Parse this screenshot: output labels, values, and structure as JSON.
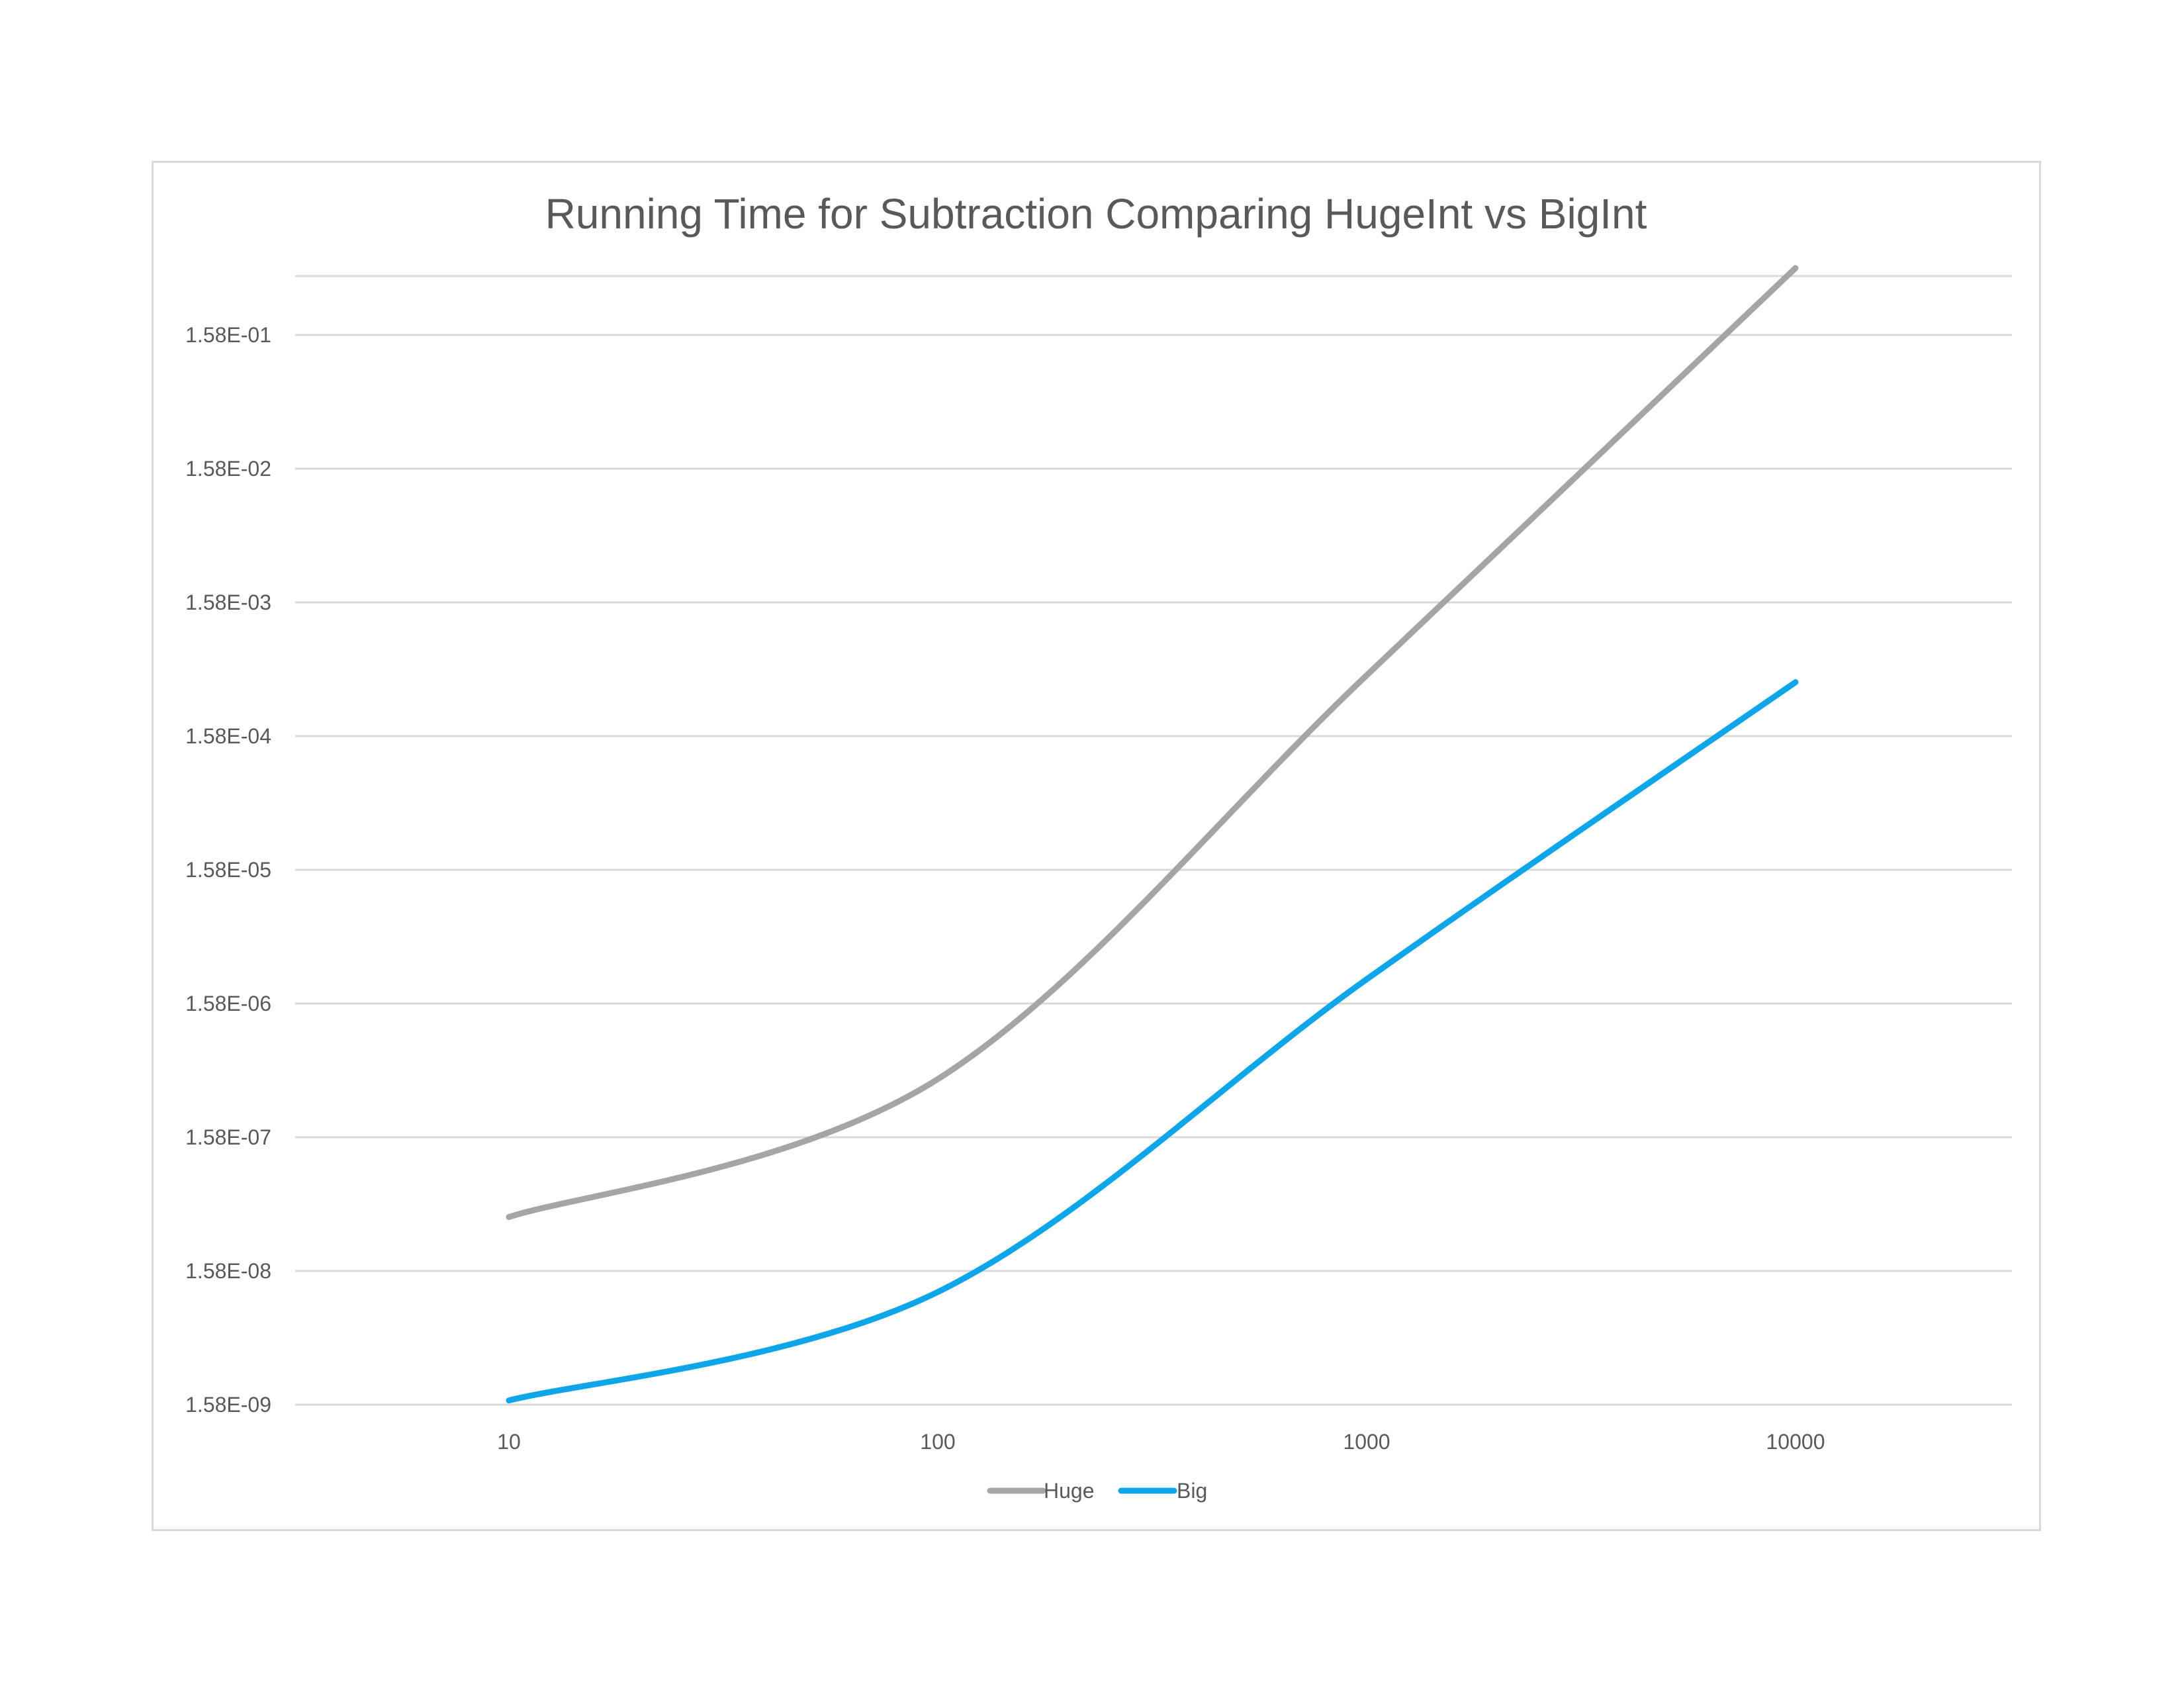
{
  "chart_data": {
    "type": "line",
    "title": "Running Time for Subtraction Comparing HugeInt vs BigInt",
    "xlabel": "",
    "ylabel": "",
    "x_scale": "log",
    "y_scale": "log",
    "x": [
      10,
      100,
      1000,
      10000
    ],
    "x_tick_labels": [
      "10",
      "100",
      "1000",
      "10000"
    ],
    "y_tick_labels": [
      "1.58E-09",
      "1.58E-08",
      "1.58E-07",
      "1.58E-06",
      "1.58E-05",
      "1.58E-04",
      "1.58E-03",
      "1.58E-02",
      "1.58E-01"
    ],
    "ylim": [
      1.58e-09,
      0.5
    ],
    "grid": true,
    "legend_position": "bottom",
    "smooth_lines": true,
    "series": [
      {
        "name": "Huge",
        "color": "#a5a5a5",
        "values": [
          4e-08,
          4.3e-07,
          0.00045,
          0.5
        ]
      },
      {
        "name": "Big",
        "color": "#0ea5e9",
        "values": [
          1.7e-09,
          1.1e-08,
          2.4e-06,
          0.0004
        ]
      }
    ]
  }
}
